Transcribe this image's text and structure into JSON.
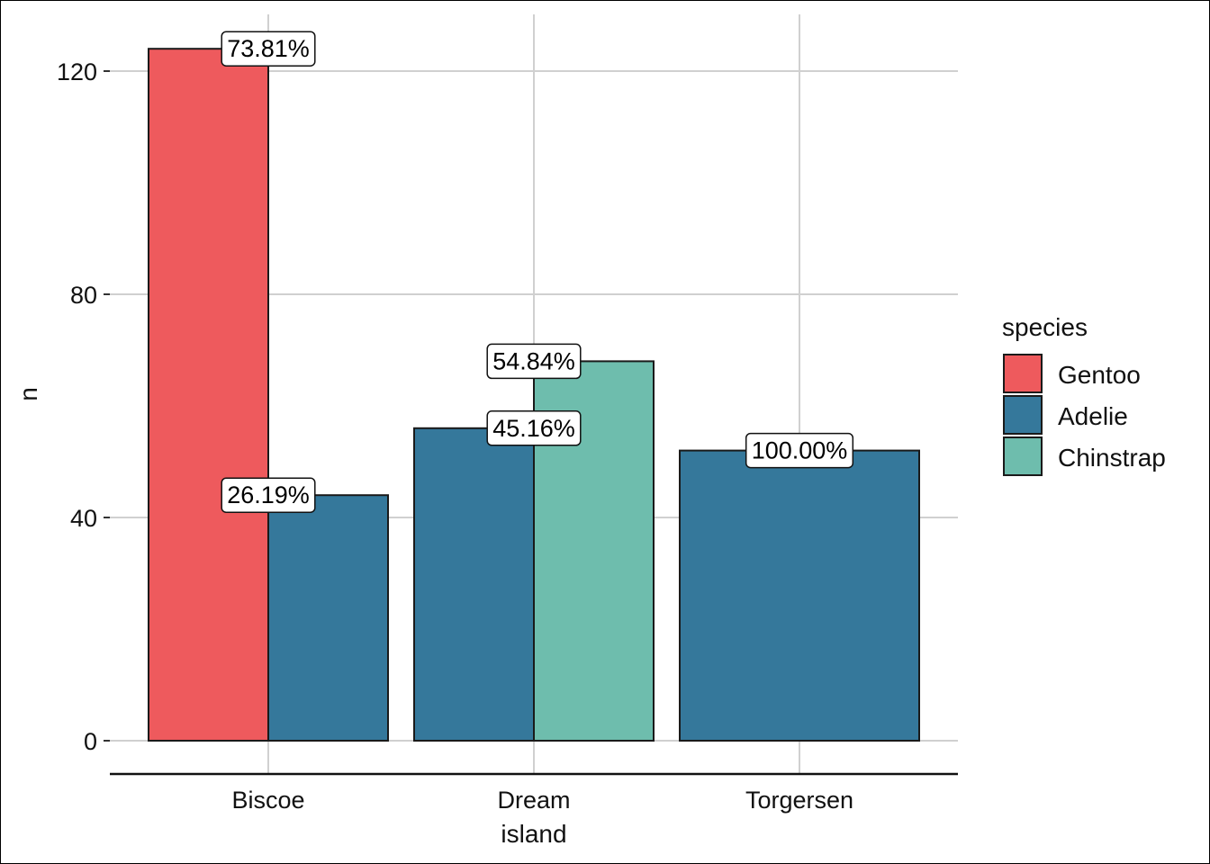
{
  "chart_data": {
    "type": "bar",
    "xlabel": "island",
    "ylabel": "n",
    "categories": [
      "Biscoe",
      "Dream",
      "Torgersen"
    ],
    "y_ticks": [
      0,
      40,
      80,
      120
    ],
    "ylim": [
      -6,
      129
    ],
    "grid": true,
    "legend": {
      "title": "species",
      "position": "right",
      "entries": [
        "Gentoo",
        "Adelie",
        "Chinstrap"
      ]
    },
    "colors": {
      "Gentoo": "#EE5A5D",
      "Adelie": "#35789B",
      "Chinstrap": "#6EBDAD"
    },
    "groups": [
      {
        "category": "Biscoe",
        "bars": [
          {
            "species": "Gentoo",
            "value": 124,
            "label": "73.81%"
          },
          {
            "species": "Adelie",
            "value": 44,
            "label": "26.19%"
          }
        ]
      },
      {
        "category": "Dream",
        "bars": [
          {
            "species": "Adelie",
            "value": 56,
            "label": "45.16%"
          },
          {
            "species": "Chinstrap",
            "value": 68,
            "label": "54.84%"
          }
        ]
      },
      {
        "category": "Torgersen",
        "bars": [
          {
            "species": "Adelie",
            "value": 52,
            "label": "100.00%"
          }
        ]
      }
    ]
  }
}
